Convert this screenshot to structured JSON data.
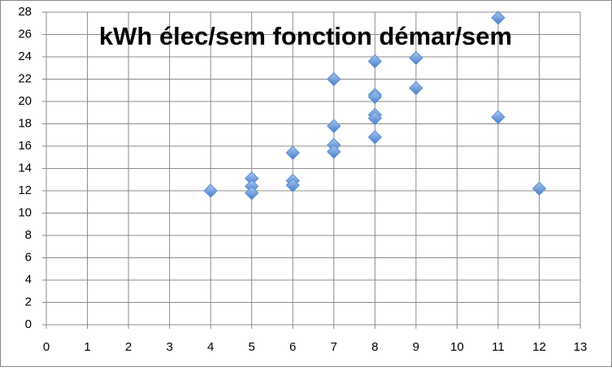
{
  "chart_data": {
    "type": "scatter",
    "title": "kWh élec/sem fonction démar/sem",
    "x": [
      4,
      5,
      5,
      5,
      6,
      6,
      6,
      7,
      7,
      7,
      7,
      8,
      8,
      8,
      8,
      8,
      8,
      9,
      9,
      11,
      11,
      12
    ],
    "values": [
      12.0,
      13.1,
      12.4,
      11.8,
      15.4,
      12.9,
      12.5,
      22.0,
      17.8,
      16.1,
      15.5,
      23.6,
      20.6,
      20.4,
      18.8,
      18.5,
      16.8,
      23.9,
      21.2,
      27.5,
      18.6,
      12.2
    ],
    "color": "#5b8fd6",
    "xlim": [
      0,
      13
    ],
    "xticks": [
      0,
      1,
      2,
      3,
      4,
      5,
      6,
      7,
      8,
      9,
      10,
      11,
      12,
      13
    ],
    "ylim": [
      0,
      28
    ],
    "yticks": [
      0,
      2,
      4,
      6,
      8,
      10,
      12,
      14,
      16,
      18,
      20,
      22,
      24,
      26,
      28
    ],
    "grid": true
  }
}
